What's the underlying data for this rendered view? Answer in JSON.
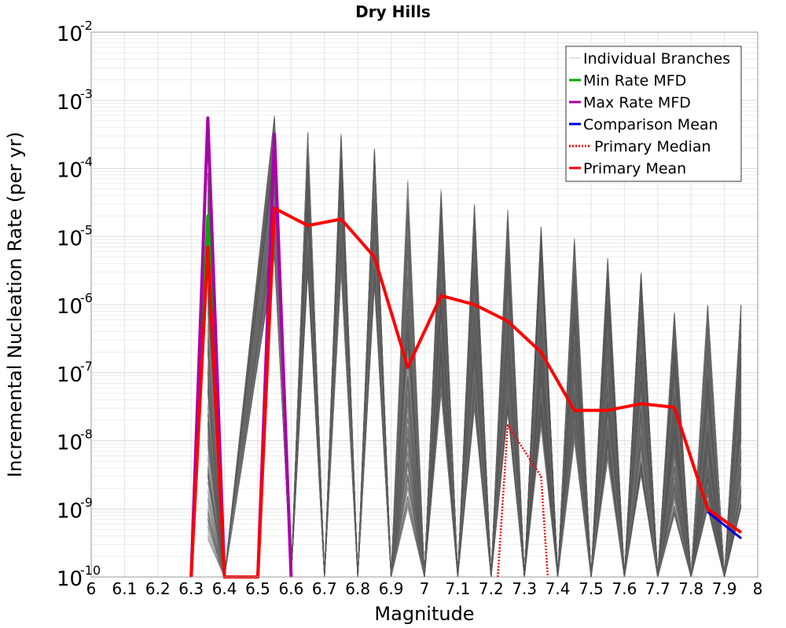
{
  "chart_data": {
    "type": "line",
    "title": "Dry Hills",
    "xlabel": "Magnitude",
    "ylabel": "Incremental Nucleation Rate (per yr)",
    "xlim": [
      6.0,
      8.0
    ],
    "ylim": [
      1e-10,
      0.01
    ],
    "yscale": "log",
    "grid": true,
    "legend_position": "top-right",
    "xticks": [
      "6",
      "6.1",
      "6.2",
      "6.3",
      "6.4",
      "6.5",
      "6.6",
      "6.7",
      "6.8",
      "6.9",
      "7",
      "7.1",
      "7.2",
      "7.3",
      "7.4",
      "7.5",
      "7.6",
      "7.7",
      "7.8",
      "7.9",
      "8"
    ],
    "yticks": [
      {
        "base": "10",
        "exp": "-10"
      },
      {
        "base": "10",
        "exp": "-9"
      },
      {
        "base": "10",
        "exp": "-8"
      },
      {
        "base": "10",
        "exp": "-7"
      },
      {
        "base": "10",
        "exp": "-6"
      },
      {
        "base": "10",
        "exp": "-5"
      },
      {
        "base": "10",
        "exp": "-4"
      },
      {
        "base": "10",
        "exp": "-3"
      },
      {
        "base": "10",
        "exp": "-2"
      }
    ],
    "series": [
      {
        "name": "Individual Branches",
        "color": "#555555",
        "style": "thin",
        "x": [
          6.35,
          6.55,
          6.65,
          6.75,
          6.85,
          6.95,
          7.05,
          7.15,
          7.25,
          7.35,
          7.45,
          7.55,
          7.65,
          7.75,
          7.85,
          7.95
        ],
        "values": [
          0.0001,
          0.0006,
          0.00035,
          0.00035,
          0.0002,
          7e-05,
          5e-05,
          3e-05,
          2.5e-05,
          1.5e-05,
          1e-05,
          5e-06,
          3e-06,
          8e-07,
          1e-06,
          1e-06
        ]
      },
      {
        "name": "Min Rate MFD",
        "color": "#00aa00",
        "x": [
          6.3,
          6.35,
          6.4
        ],
        "values": [
          1e-10,
          2e-05,
          1e-10
        ]
      },
      {
        "name": "Max Rate MFD",
        "color": "#aa00aa",
        "x": [
          6.3,
          6.35,
          6.4,
          6.5,
          6.55,
          6.6
        ],
        "values": [
          1e-10,
          0.00055,
          1e-10,
          1e-10,
          0.00032,
          1e-10
        ]
      },
      {
        "name": "Comparison Mean",
        "color": "#0000dd",
        "x": [
          7.85,
          7.95
        ],
        "values": [
          9e-10,
          3.7e-10
        ]
      },
      {
        "name": "Primary Median",
        "color": "#ff0000",
        "style": "dotted",
        "x": [
          7.22,
          7.25,
          7.35,
          7.37
        ],
        "values": [
          1e-10,
          1.7e-08,
          3e-09,
          1e-10
        ]
      },
      {
        "name": "Primary Mean",
        "color": "#ff0000",
        "x": [
          6.3,
          6.35,
          6.4,
          6.5,
          6.55,
          6.65,
          6.75,
          6.85,
          6.95,
          7.05,
          7.15,
          7.25,
          7.35,
          7.45,
          7.55,
          7.65,
          7.75,
          7.85,
          7.95
        ],
        "values": [
          1e-10,
          7e-06,
          1e-10,
          1e-10,
          2.6e-05,
          1.45e-05,
          1.8e-05,
          5e-06,
          1.2e-07,
          1.35e-06,
          1e-06,
          5.7e-07,
          2e-07,
          2.8e-08,
          2.8e-08,
          3.5e-08,
          3.1e-08,
          1e-09,
          4.5e-10
        ]
      }
    ]
  }
}
